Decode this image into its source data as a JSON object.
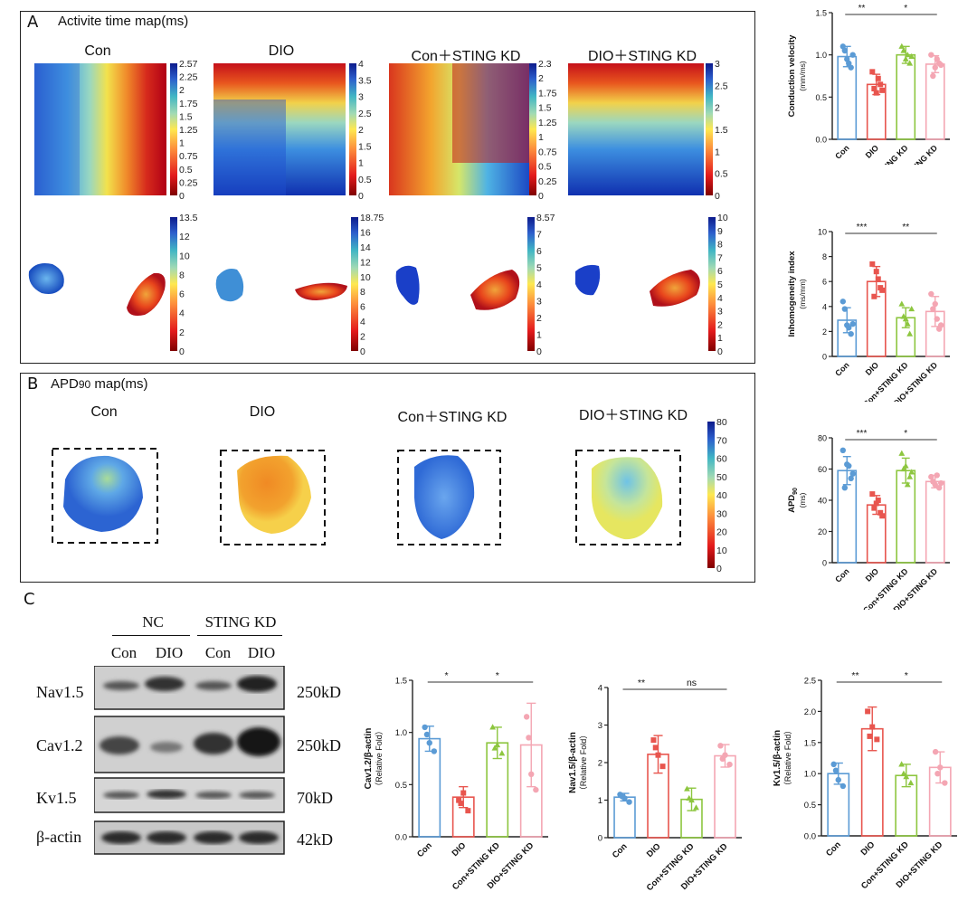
{
  "panel_a": {
    "letter": "A",
    "title": "Activite time map(ms)",
    "groups": [
      "Con",
      "DIO",
      "Con＋STING KD",
      "DIO＋STING KD"
    ],
    "top_colorbars": [
      [
        "2.57",
        "2.25",
        "2",
        "1.75",
        "1.5",
        "1.25",
        "1",
        "0.75",
        "0.5",
        "0.25",
        "0"
      ],
      [
        "4",
        "3.5",
        "3",
        "2.5",
        "2",
        "1.5",
        "1",
        "0.5",
        "0"
      ],
      [
        "2.3",
        "2",
        "1.75",
        "1.5",
        "1.25",
        "1",
        "0.75",
        "0.5",
        "0.25",
        "0"
      ],
      [
        "3",
        "2.5",
        "2",
        "1.5",
        "1",
        "0.5",
        "0"
      ]
    ],
    "bottom_colorbars": [
      [
        "13.5",
        "12",
        "10",
        "8",
        "6",
        "4",
        "2",
        "0"
      ],
      [
        "18.75",
        "16",
        "14",
        "12",
        "10",
        "8",
        "6",
        "4",
        "2",
        "0"
      ],
      [
        "8.57",
        "7",
        "6",
        "5",
        "4",
        "3",
        "2",
        "1",
        "0"
      ],
      [
        "10",
        "9",
        "8",
        "7",
        "6",
        "5",
        "4",
        "3",
        "2",
        "1",
        "0"
      ]
    ]
  },
  "panel_b": {
    "letter": "B",
    "title_main": "APD",
    "title_sub": "90",
    "title_rest": " map(ms)",
    "groups": [
      "Con",
      "DIO",
      "Con＋STING KD",
      "DIO＋STING KD"
    ],
    "colorbar": [
      "80",
      "70",
      "60",
      "50",
      "40",
      "30",
      "20",
      "10",
      "0"
    ]
  },
  "panel_c": {
    "letter": "C",
    "group_labels": [
      "NC",
      "STING KD"
    ],
    "lane_labels": [
      "Con",
      "DIO",
      "Con",
      "DIO"
    ],
    "rows": [
      {
        "protein": "Nav1.5",
        "size": "250kD"
      },
      {
        "protein": "Cav1.2",
        "size": "250kD"
      },
      {
        "protein": "Kv1.5",
        "size": "70kD"
      },
      {
        "protein": "β-actin",
        "size": "42kD"
      }
    ]
  },
  "colors": {
    "con": "#5b9bd5",
    "dio": "#e8554e",
    "con_kd": "#8dc63f",
    "dio_kd": "#f4a6b3"
  },
  "chart_data": [
    {
      "type": "bar",
      "ylabel": "Conduction velocity",
      "ylabel2": "(mm/ms)",
      "categories": [
        "Con",
        "DIO",
        "Con+STING KD",
        "DIO+STING KD"
      ],
      "values": [
        0.98,
        0.65,
        1.0,
        0.89
      ],
      "errors": [
        0.12,
        0.12,
        0.1,
        0.1
      ],
      "points": [
        [
          1.1,
          0.95,
          0.85,
          1.05,
          0.9,
          1.0
        ],
        [
          0.8,
          0.55,
          0.65,
          0.6,
          0.72,
          0.58
        ],
        [
          1.1,
          0.95,
          0.9,
          1.05,
          1.0,
          0.98
        ],
        [
          1.0,
          0.85,
          0.9,
          0.75,
          0.95,
          0.88
        ]
      ],
      "ylim": [
        0,
        1.5
      ],
      "yticks": [
        "0.0",
        "0.5",
        "1.0",
        "1.5"
      ],
      "sig": [
        {
          "from": 0,
          "to": 1,
          "label": "**"
        },
        {
          "from": 1,
          "to": 3,
          "label": "*"
        }
      ]
    },
    {
      "type": "bar",
      "ylabel": "Inhomogeneity index",
      "ylabel2": "(ms/mm)",
      "categories": [
        "Con",
        "DIO",
        "Con+STING KD",
        "DIO+STING KD"
      ],
      "values": [
        2.9,
        6.0,
        3.1,
        3.6
      ],
      "errors": [
        1.0,
        1.2,
        0.8,
        1.2
      ],
      "points": [
        [
          4.4,
          2.5,
          1.8,
          3.8,
          2.3,
          2.6
        ],
        [
          7.4,
          6.8,
          5.5,
          4.8,
          6.2,
          5.3
        ],
        [
          4.2,
          3.0,
          1.8,
          3.2,
          2.6,
          3.8
        ],
        [
          5.0,
          4.2,
          2.2,
          3.8,
          3.0,
          2.5
        ]
      ],
      "ylim": [
        0,
        10
      ],
      "yticks": [
        "0",
        "2",
        "4",
        "6",
        "8",
        "10"
      ],
      "sig": [
        {
          "from": 0,
          "to": 1,
          "label": "***"
        },
        {
          "from": 1,
          "to": 3,
          "label": "**"
        }
      ]
    },
    {
      "type": "bar",
      "ylabel": "APD",
      "ylabel_sub": "90",
      "ylabel2": "(ms)",
      "categories": [
        "Con",
        "DIO",
        "Con+STING KD",
        "DIO+STING KD"
      ],
      "values": [
        59,
        37,
        59,
        52
      ],
      "errors": [
        9,
        6,
        8,
        4
      ],
      "points": [
        [
          72,
          63,
          54,
          48,
          62,
          57
        ],
        [
          44,
          38,
          32,
          35,
          40,
          30
        ],
        [
          70,
          62,
          55,
          60,
          50,
          58
        ],
        [
          55,
          50,
          48,
          52,
          56,
          51
        ]
      ],
      "ylim": [
        0,
        80
      ],
      "yticks": [
        "0",
        "20",
        "40",
        "60",
        "80"
      ],
      "sig": [
        {
          "from": 0,
          "to": 1,
          "label": "***"
        },
        {
          "from": 1,
          "to": 3,
          "label": "*"
        }
      ]
    },
    {
      "type": "bar",
      "ylabel": "Cav1.2/β-actin",
      "ylabel2": "（Relative Fold）",
      "categories": [
        "Con",
        "DIO",
        "Con+STING KD",
        "DIO+STING KD"
      ],
      "values": [
        0.94,
        0.38,
        0.9,
        0.88
      ],
      "errors": [
        0.12,
        0.1,
        0.15,
        0.4
      ],
      "points": [
        [
          1.05,
          0.9,
          0.82,
          0.98
        ],
        [
          0.35,
          0.42,
          0.25,
          0.32
        ],
        [
          1.05,
          0.88,
          0.8,
          0.85
        ],
        [
          1.15,
          0.6,
          0.45,
          0.95
        ]
      ],
      "ylim": [
        0,
        1.5
      ],
      "yticks": [
        "0.0",
        "0.5",
        "1.0",
        "1.5"
      ],
      "sig": [
        {
          "from": 0,
          "to": 1,
          "label": "*"
        },
        {
          "from": 1,
          "to": 3,
          "label": "*"
        }
      ]
    },
    {
      "type": "bar",
      "ylabel": "Nav1.5/β-actin",
      "ylabel2": "（Relative Fold）",
      "categories": [
        "Con",
        "DIO",
        "Con+STING KD",
        "DIO+STING KD"
      ],
      "values": [
        1.08,
        2.22,
        1.02,
        2.18
      ],
      "errors": [
        0.1,
        0.5,
        0.3,
        0.3
      ],
      "points": [
        [
          1.15,
          1.05,
          0.95,
          1.1
        ],
        [
          2.6,
          2.2,
          1.9,
          2.4
        ],
        [
          1.3,
          1.0,
          0.8,
          1.05
        ],
        [
          2.45,
          2.2,
          1.95,
          2.1
        ]
      ],
      "ylim": [
        0,
        4
      ],
      "yticks": [
        "0",
        "1",
        "2",
        "3",
        "4"
      ],
      "sig": [
        {
          "from": 0,
          "to": 1,
          "label": "**"
        },
        {
          "from": 1,
          "to": 3,
          "label": "ns"
        }
      ]
    },
    {
      "type": "bar",
      "ylabel": "Kv1.5/β-actin",
      "ylabel2": "（Relative Fold）",
      "categories": [
        "Con",
        "DIO",
        "Con+STING KD",
        "DIO+STING KD"
      ],
      "values": [
        1.0,
        1.72,
        0.97,
        1.1
      ],
      "errors": [
        0.17,
        0.35,
        0.18,
        0.25
      ],
      "points": [
        [
          1.15,
          0.9,
          0.8,
          1.05
        ],
        [
          2.0,
          1.75,
          1.55,
          1.6
        ],
        [
          1.15,
          0.95,
          0.85,
          1.0
        ],
        [
          1.35,
          1.1,
          0.85,
          1.0
        ]
      ],
      "ylim": [
        0,
        2.5
      ],
      "yticks": [
        "0.0",
        "0.5",
        "1.0",
        "1.5",
        "2.0",
        "2.5"
      ],
      "sig": [
        {
          "from": 0,
          "to": 1,
          "label": "**"
        },
        {
          "from": 1,
          "to": 3,
          "label": "*"
        }
      ]
    }
  ]
}
